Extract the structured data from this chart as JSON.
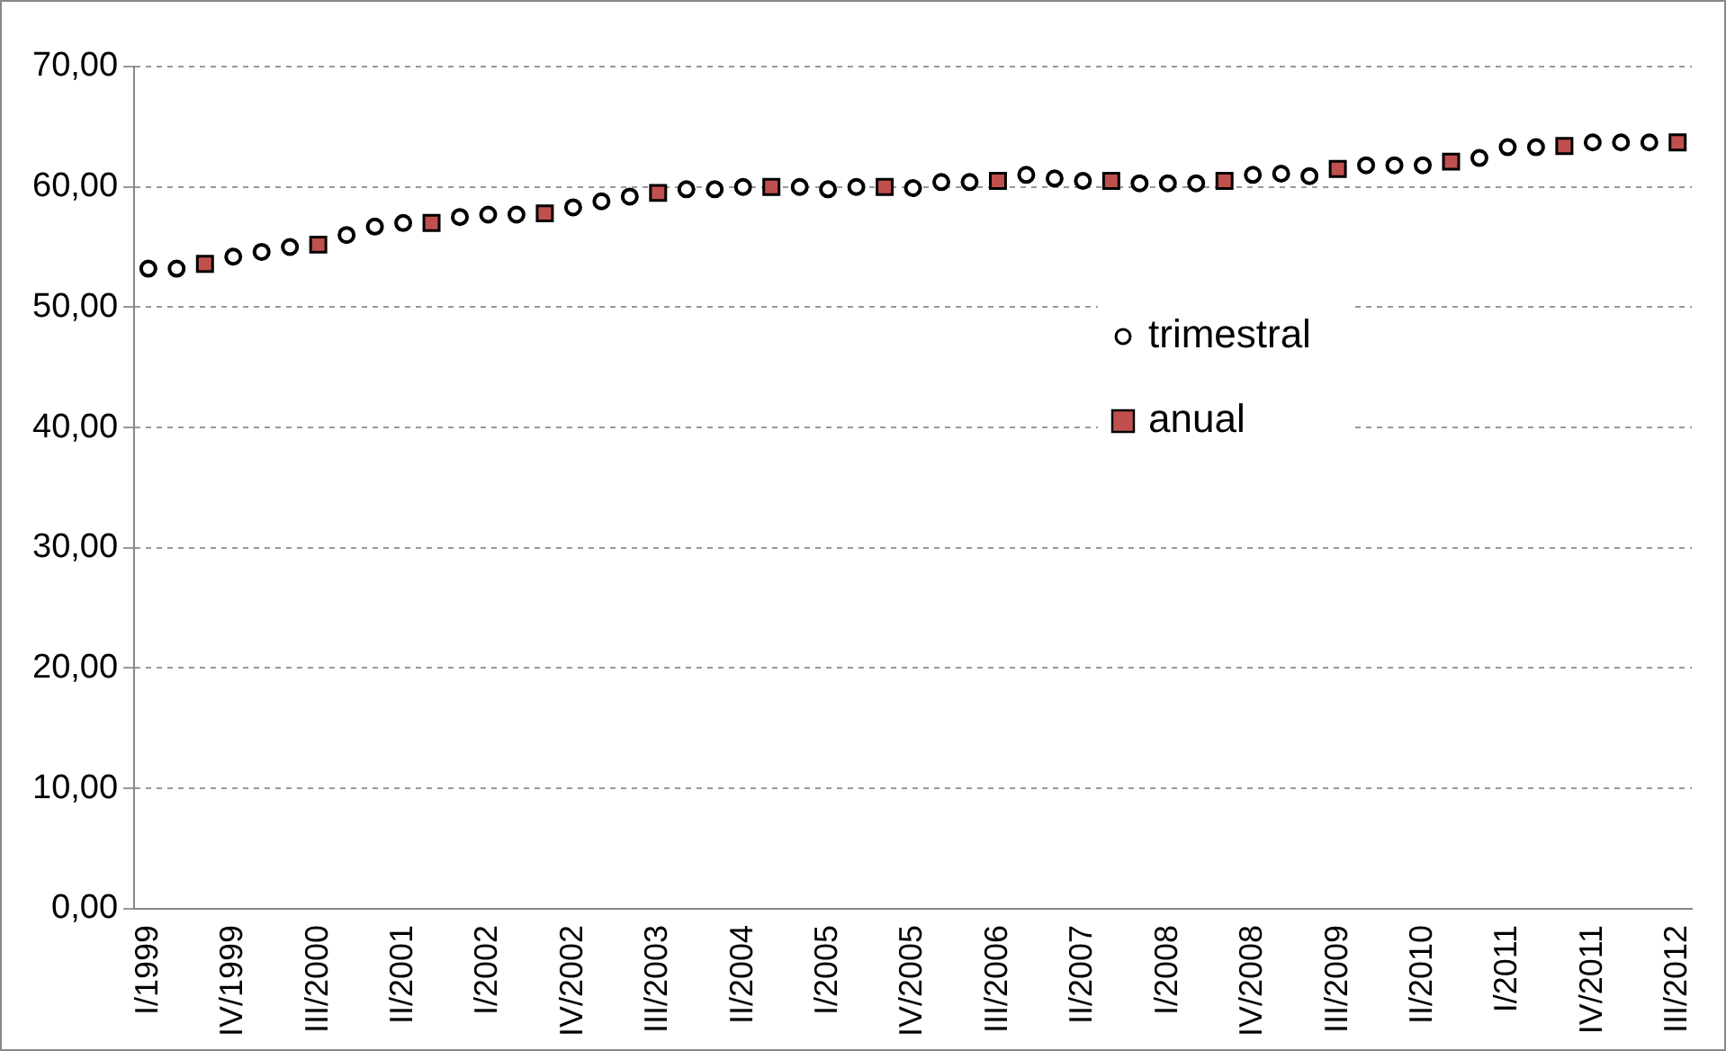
{
  "chart_data": {
    "type": "scatter",
    "categories": [
      "I/1999",
      null,
      null,
      "IV/1999",
      null,
      null,
      "III/2000",
      null,
      null,
      "II/2001",
      null,
      null,
      "I/2002",
      null,
      null,
      "IV/2002",
      null,
      null,
      "III/2003",
      null,
      null,
      "II/2004",
      null,
      null,
      "I/2005",
      null,
      null,
      "IV/2005",
      null,
      null,
      "III/2006",
      null,
      null,
      "II/2007",
      null,
      null,
      "I/2008",
      null,
      null,
      "IV/2008",
      null,
      null,
      "III/2009",
      null,
      null,
      "II/2010",
      null,
      null,
      "I/2011",
      null,
      null,
      "IV/2011",
      null,
      null,
      "III/2012"
    ],
    "series": [
      {
        "name": "trimestral",
        "color": "#000000",
        "marker": "circle",
        "values": [
          53.2,
          53.2,
          null,
          54.2,
          54.6,
          55.0,
          null,
          56.0,
          56.7,
          57.0,
          null,
          57.5,
          57.7,
          57.7,
          null,
          58.3,
          58.8,
          59.2,
          null,
          59.8,
          59.8,
          60.0,
          null,
          60.0,
          59.8,
          60.0,
          null,
          59.9,
          60.4,
          60.4,
          null,
          61.0,
          60.7,
          60.5,
          null,
          60.3,
          60.3,
          60.3,
          null,
          61.0,
          61.1,
          60.9,
          null,
          61.8,
          61.8,
          61.8,
          null,
          62.4,
          63.3,
          63.3,
          null,
          63.7,
          63.7,
          63.7,
          null
        ]
      },
      {
        "name": "anual",
        "color": "#c0504d",
        "marker": "square",
        "values": [
          null,
          null,
          53.6,
          null,
          null,
          null,
          55.2,
          null,
          null,
          null,
          57.0,
          null,
          null,
          null,
          57.8,
          null,
          null,
          null,
          59.5,
          null,
          null,
          null,
          60.0,
          null,
          null,
          null,
          60.0,
          null,
          null,
          null,
          60.5,
          null,
          null,
          null,
          60.5,
          null,
          null,
          null,
          60.5,
          null,
          null,
          null,
          61.5,
          null,
          null,
          null,
          62.1,
          null,
          null,
          null,
          63.4,
          null,
          null,
          null,
          63.7
        ]
      }
    ],
    "ylim": [
      0,
      70
    ],
    "yticks": [
      {
        "value": 0,
        "label": "0,00"
      },
      {
        "value": 10,
        "label": "10,00"
      },
      {
        "value": 20,
        "label": "20,00"
      },
      {
        "value": 30,
        "label": "30,00"
      },
      {
        "value": 40,
        "label": "40,00"
      },
      {
        "value": 50,
        "label": "50,00"
      },
      {
        "value": 60,
        "label": "60,00"
      },
      {
        "value": 70,
        "label": "70,00"
      }
    ],
    "grid": "y",
    "legend": "right"
  }
}
